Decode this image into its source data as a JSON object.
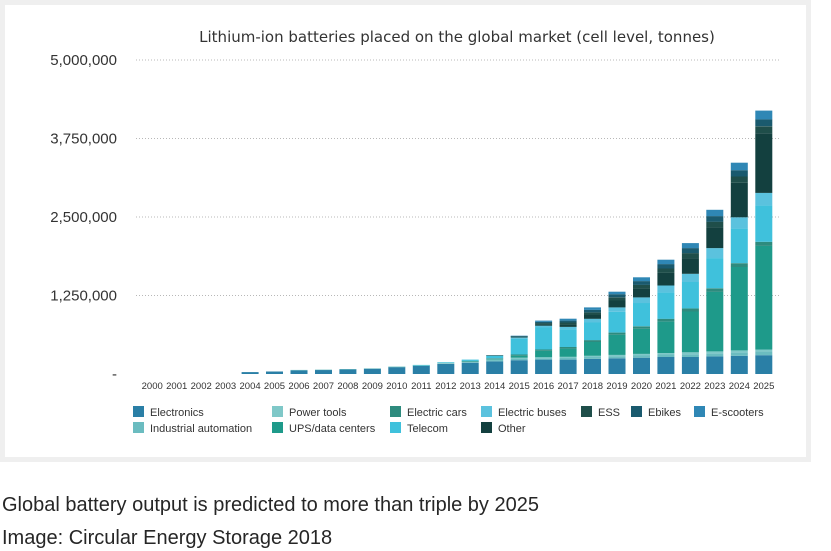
{
  "captions": {
    "line1": "Global battery output is predicted to more than triple by 2025",
    "line2": "Image: Circular Energy Storage 2018"
  },
  "chart_data": {
    "type": "bar",
    "stacked": true,
    "title": "Lithium-ion batteries placed on the global market (cell level, tonnes)",
    "xlabel": "",
    "ylabel": "",
    "ylim": [
      0,
      5000000
    ],
    "yticks": [
      0,
      1250000,
      2500000,
      3750000,
      5000000
    ],
    "ytick_labels": [
      "-",
      "1,250,000",
      "2,500,000",
      "3,750,000",
      "5,000,000"
    ],
    "grid": "horizontal dotted",
    "legend_position": "bottom",
    "categories": [
      "2000",
      "2001",
      "2002",
      "2003",
      "2004",
      "2005",
      "2006",
      "2007",
      "2008",
      "2009",
      "2010",
      "2011",
      "2012",
      "2013",
      "2014",
      "2015",
      "2016",
      "2017",
      "2018",
      "2019",
      "2020",
      "2021",
      "2022",
      "2023",
      "2024",
      "2025"
    ],
    "series": [
      {
        "name": "Electronics",
        "color": "#2a7fa6",
        "values": [
          0,
          0,
          0,
          0,
          30000,
          40000,
          60000,
          65000,
          75000,
          85000,
          110000,
          130000,
          160000,
          180000,
          200000,
          220000,
          230000,
          230000,
          240000,
          250000,
          260000,
          270000,
          270000,
          280000,
          290000,
          300000
        ]
      },
      {
        "name": "Industrial automation",
        "color": "#6bbcc0",
        "values": [
          0,
          0,
          0,
          0,
          0,
          0,
          0,
          0,
          0,
          0,
          5000,
          5000,
          10000,
          10000,
          15000,
          20000,
          20000,
          25000,
          30000,
          30000,
          35000,
          40000,
          45000,
          50000,
          55000,
          60000
        ]
      },
      {
        "name": "Power tools",
        "color": "#7fc8c8",
        "values": [
          0,
          0,
          0,
          0,
          0,
          0,
          5000,
          5000,
          5000,
          5000,
          5000,
          5000,
          10000,
          10000,
          15000,
          20000,
          20000,
          20000,
          20000,
          25000,
          25000,
          25000,
          30000,
          30000,
          30000,
          30000
        ]
      },
      {
        "name": "UPS/data centers",
        "color": "#1e9a8a",
        "values": [
          0,
          0,
          0,
          0,
          0,
          0,
          0,
          0,
          0,
          0,
          0,
          0,
          0,
          5000,
          10000,
          30000,
          100000,
          130000,
          220000,
          320000,
          400000,
          500000,
          650000,
          950000,
          1330000,
          1650000
        ]
      },
      {
        "name": "Electric cars",
        "color": "#2e8b7e",
        "values": [
          0,
          0,
          0,
          0,
          0,
          0,
          0,
          0,
          0,
          0,
          0,
          0,
          0,
          5000,
          10000,
          20000,
          20000,
          25000,
          30000,
          35000,
          40000,
          45000,
          50000,
          55000,
          60000,
          65000
        ]
      },
      {
        "name": "Telecom",
        "color": "#3fc1dc",
        "values": [
          0,
          0,
          0,
          0,
          0,
          0,
          0,
          0,
          0,
          0,
          0,
          5000,
          10000,
          20000,
          40000,
          250000,
          350000,
          280000,
          280000,
          330000,
          370000,
          420000,
          420000,
          480000,
          550000,
          580000
        ]
      },
      {
        "name": "Electric buses",
        "color": "#5bc2de",
        "values": [
          0,
          0,
          0,
          0,
          0,
          0,
          0,
          0,
          0,
          0,
          0,
          0,
          0,
          0,
          5000,
          20000,
          30000,
          40000,
          60000,
          70000,
          90000,
          110000,
          130000,
          160000,
          180000,
          200000
        ]
      },
      {
        "name": "Other",
        "color": "#13403f",
        "values": [
          0,
          0,
          0,
          0,
          0,
          0,
          0,
          0,
          0,
          0,
          0,
          0,
          0,
          0,
          5000,
          10000,
          20000,
          40000,
          60000,
          110000,
          140000,
          200000,
          250000,
          330000,
          550000,
          950000
        ]
      },
      {
        "name": "ESS",
        "color": "#1f4e4a",
        "values": [
          0,
          0,
          0,
          0,
          0,
          0,
          0,
          0,
          0,
          0,
          0,
          0,
          0,
          0,
          0,
          10000,
          20000,
          30000,
          40000,
          50000,
          60000,
          70000,
          80000,
          90000,
          100000,
          110000
        ]
      },
      {
        "name": "Ebikes",
        "color": "#1a5a6e",
        "values": [
          0,
          0,
          0,
          0,
          0,
          0,
          0,
          0,
          0,
          0,
          0,
          0,
          0,
          0,
          0,
          5000,
          20000,
          30000,
          40000,
          50000,
          60000,
          70000,
          80000,
          90000,
          100000,
          110000
        ]
      },
      {
        "name": "E-scooters",
        "color": "#2f87b5",
        "values": [
          0,
          0,
          0,
          0,
          0,
          0,
          0,
          0,
          0,
          0,
          0,
          0,
          0,
          0,
          0,
          5000,
          20000,
          30000,
          40000,
          40000,
          60000,
          70000,
          80000,
          100000,
          120000,
          140000
        ]
      }
    ],
    "legend_rows": [
      [
        "Electronics",
        "Power tools",
        "Electric cars",
        "Electric buses",
        "ESS",
        "Ebikes",
        "E-scooters"
      ],
      [
        "Industrial automation",
        "UPS/data centers",
        "Telecom",
        "Other"
      ]
    ]
  }
}
